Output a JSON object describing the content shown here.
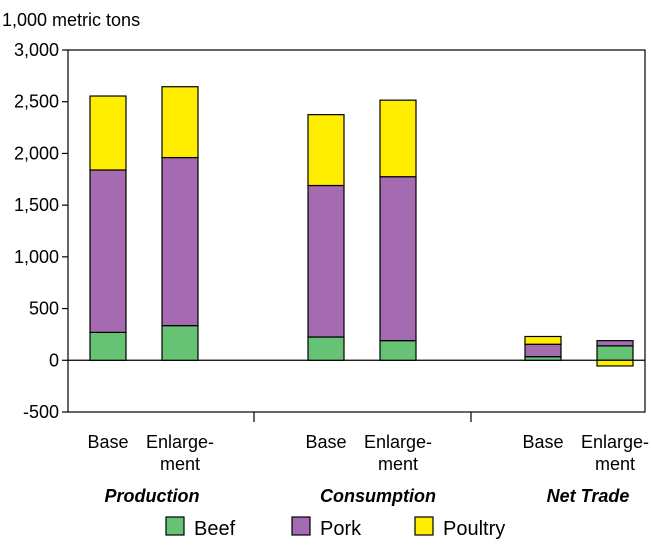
{
  "chart_data": {
    "type": "bar",
    "stacked": true,
    "unit_label": "1,000 metric tons",
    "ylim": [
      -500,
      3000
    ],
    "yticks": [
      "3,000",
      "2,500",
      "2,000",
      "1,500",
      "1,000",
      "500",
      "0",
      "-500"
    ],
    "ytick_values": [
      3000,
      2500,
      2000,
      1500,
      1000,
      500,
      0,
      -500
    ],
    "groups": [
      {
        "name": "Production",
        "bars": [
          {
            "label": [
              "Base"
            ],
            "values": {
              "Beef": 270,
              "Pork": 1570,
              "Poultry": 715
            }
          },
          {
            "label": [
              "Enlarge-",
              "ment"
            ],
            "values": {
              "Beef": 335,
              "Pork": 1625,
              "Poultry": 685
            }
          }
        ]
      },
      {
        "name": "Consumption",
        "bars": [
          {
            "label": [
              "Base"
            ],
            "values": {
              "Beef": 225,
              "Pork": 1465,
              "Poultry": 685
            }
          },
          {
            "label": [
              "Enlarge-",
              "ment"
            ],
            "values": {
              "Beef": 190,
              "Pork": 1585,
              "Poultry": 740
            }
          }
        ]
      },
      {
        "name": "Net Trade",
        "bars": [
          {
            "label": [
              "Base"
            ],
            "values": {
              "Beef": 35,
              "Pork": 120,
              "Poultry": 75
            }
          },
          {
            "label": [
              "Enlarge-",
              "ment"
            ],
            "values": {
              "Beef": 140,
              "Pork": 50,
              "Poultry": -55
            }
          }
        ]
      }
    ],
    "series": [
      {
        "name": "Beef",
        "color": "#66c274"
      },
      {
        "name": "Pork",
        "color": "#a56bb0"
      },
      {
        "name": "Poultry",
        "color": "#ffee00"
      }
    ],
    "grid": false,
    "legend_position": "bottom"
  }
}
